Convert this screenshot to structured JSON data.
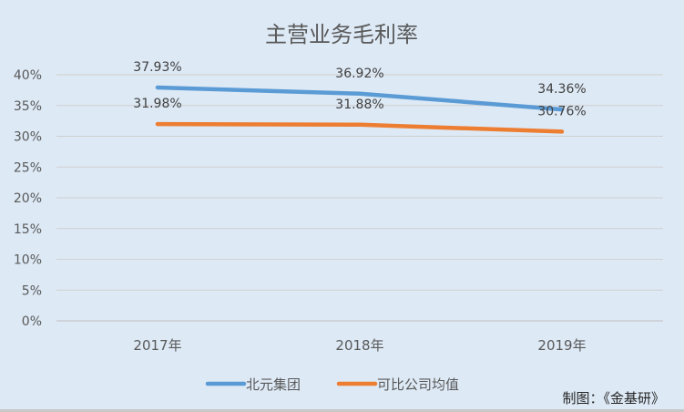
{
  "chart_data": {
    "type": "line",
    "title": "主营业务毛利率",
    "categories": [
      "2017年",
      "2018年",
      "2019年"
    ],
    "series": [
      {
        "name": "北元集团",
        "values": [
          37.93,
          36.92,
          34.36
        ],
        "labels": [
          "37.93%",
          "36.92%",
          "34.36%"
        ],
        "color": "#5b9bd5"
      },
      {
        "name": "可比公司均值",
        "values": [
          31.98,
          31.88,
          30.76
        ],
        "labels": [
          "31.98%",
          "31.88%",
          "30.76%"
        ],
        "color": "#ed7d31"
      }
    ],
    "ylim": [
      0,
      40
    ],
    "yticks": [
      "0%",
      "5%",
      "10%",
      "15%",
      "20%",
      "25%",
      "30%",
      "35%",
      "40%"
    ],
    "grid": true,
    "legend": "bottom",
    "xlabel": "",
    "ylabel": ""
  },
  "credit": "制图：《金基研》"
}
